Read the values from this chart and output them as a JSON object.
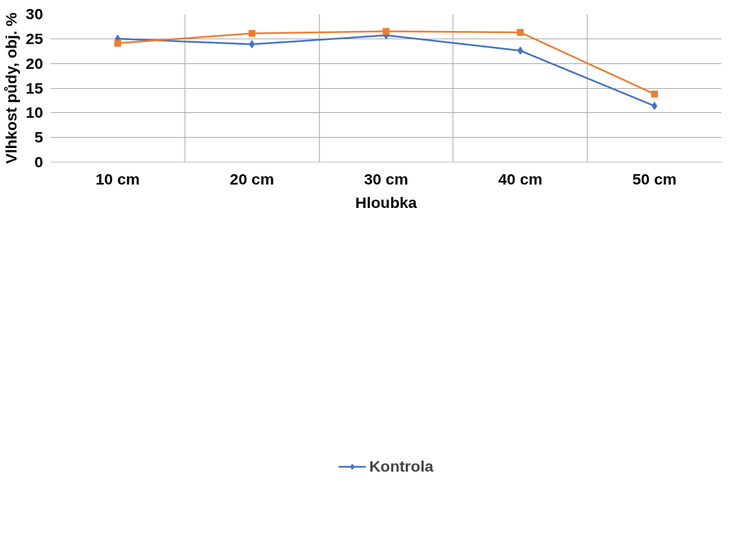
{
  "chart_data": {
    "type": "line",
    "xlabel": "Hloubka",
    "ylabel": "Vlhkost půdy, obj. %",
    "categories": [
      "10 cm",
      "20 cm",
      "30 cm",
      "40 cm",
      "50 cm"
    ],
    "series": [
      {
        "name": "Kontrola",
        "color": "#4472c4",
        "marker": "diamond",
        "values": [
          25.0,
          23.9,
          25.7,
          22.6,
          11.4
        ]
      },
      {
        "color": "#ed7d31",
        "marker": "square",
        "values": [
          24.1,
          26.1,
          26.5,
          26.3,
          13.8
        ]
      }
    ],
    "ylim": [
      0,
      30
    ],
    "yticks": [
      0,
      5,
      10,
      15,
      20,
      25,
      30
    ],
    "grid": true,
    "legend": "bottom"
  }
}
